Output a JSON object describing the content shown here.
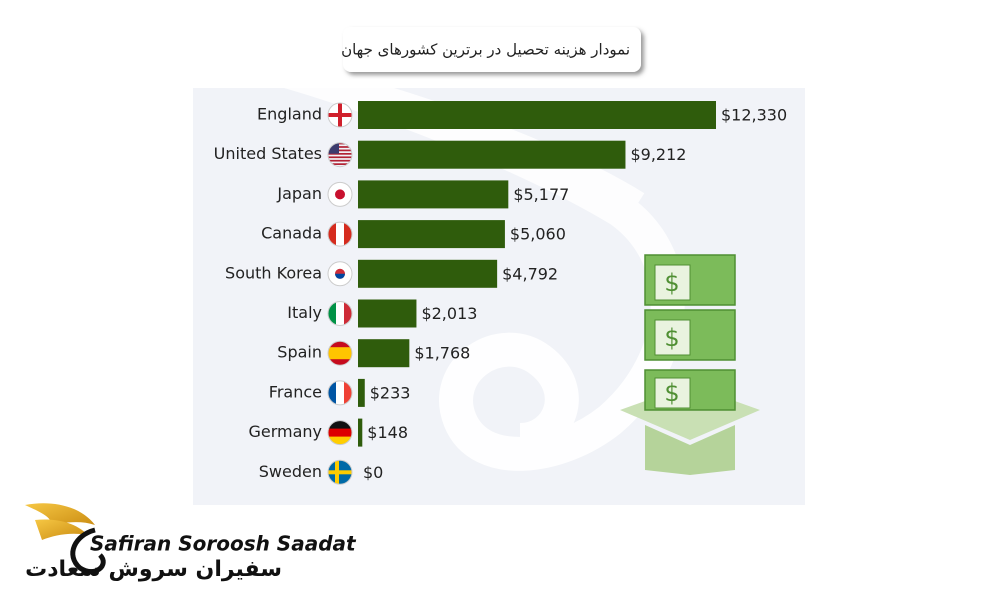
{
  "chart_data": {
    "type": "bar",
    "orientation": "horizontal",
    "title": "نمودار هزینه تحصیل در برترین کشورهای جهان",
    "categories": [
      "England",
      "United States",
      "Japan",
      "Canada",
      "South Korea",
      "Italy",
      "Spain",
      "France",
      "Germany",
      "Sweden"
    ],
    "values": [
      12330,
      9212,
      5177,
      5060,
      4792,
      2013,
      1768,
      233,
      148,
      0
    ],
    "value_labels": [
      "$12,330",
      "$9,212",
      "$5,177",
      "$5,060",
      "$4,792",
      "$2,013",
      "$1,768",
      "$233",
      "$148",
      "$0"
    ],
    "color": "#2f5c0c"
  },
  "logo": {
    "latin": "Safiran Soroosh Saadat",
    "persian": "سفیران سروش سعادت"
  }
}
